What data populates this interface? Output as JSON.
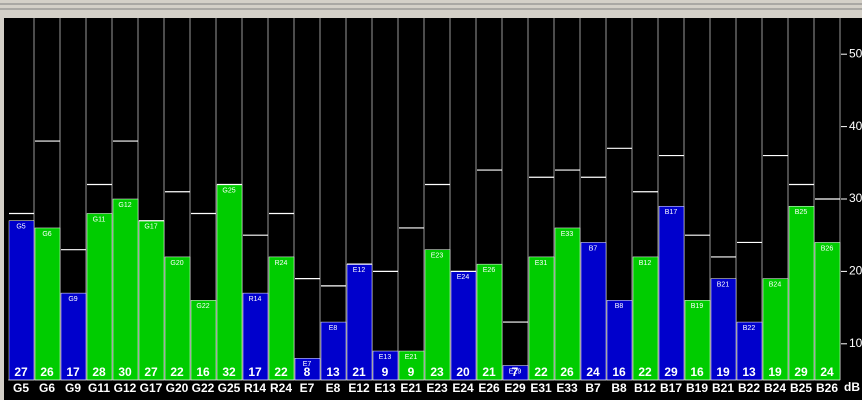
{
  "chart_data": {
    "type": "bar",
    "categories": [
      "G5",
      "G6",
      "G9",
      "G11",
      "G12",
      "G17",
      "G20",
      "G22",
      "G25",
      "R14",
      "R24",
      "E7",
      "E8",
      "E12",
      "E13",
      "E21",
      "E23",
      "E24",
      "E26",
      "E29",
      "E31",
      "E33",
      "B7",
      "B8",
      "B12",
      "B17",
      "B19",
      "B21",
      "B22",
      "B24",
      "B25",
      "B26"
    ],
    "values": [
      27,
      26,
      17,
      28,
      30,
      27,
      22,
      16,
      32,
      17,
      22,
      8,
      13,
      21,
      9,
      9,
      23,
      20,
      21,
      7,
      22,
      26,
      24,
      16,
      22,
      29,
      16,
      19,
      13,
      19,
      29,
      24
    ],
    "colors": [
      "#0000cc",
      "#00cc00",
      "#0000cc",
      "#00cc00",
      "#00cc00",
      "#00cc00",
      "#00cc00",
      "#00cc00",
      "#00cc00",
      "#0000cc",
      "#00cc00",
      "#0000cc",
      "#0000cc",
      "#0000cc",
      "#0000cc",
      "#00cc00",
      "#00cc00",
      "#0000cc",
      "#00cc00",
      "#0000cc",
      "#00cc00",
      "#00cc00",
      "#0000cc",
      "#0000cc",
      "#00cc00",
      "#0000cc",
      "#00cc00",
      "#0000cc",
      "#0000cc",
      "#00cc00",
      "#00cc00",
      "#00cc00"
    ],
    "marker_values": [
      28,
      38,
      23,
      32,
      38,
      27,
      31,
      28,
      32,
      25,
      28,
      19,
      18,
      21,
      20,
      26,
      32,
      20,
      34,
      13,
      33,
      34,
      33,
      37,
      31,
      36,
      25,
      22,
      24,
      36,
      32,
      30
    ],
    "marker_color": "#ffffff",
    "ylim": [
      5,
      55
    ],
    "yticks": [
      10,
      20,
      30,
      40,
      50
    ],
    "y_unit": "dB"
  }
}
